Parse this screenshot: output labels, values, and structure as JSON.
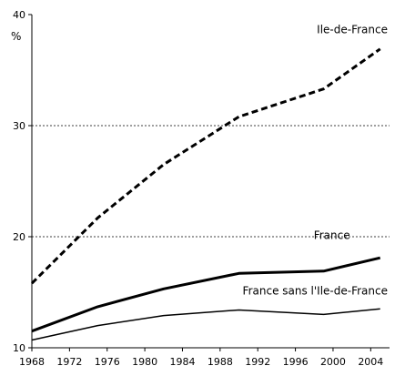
{
  "chart_data": {
    "type": "line",
    "title": "",
    "xlabel": "",
    "ylabel": "%",
    "xlim": [
      1968,
      2006
    ],
    "ylim": [
      10,
      40
    ],
    "x_ticks": [
      1968,
      1972,
      1976,
      1980,
      1984,
      1988,
      1992,
      1996,
      2000,
      2004
    ],
    "y_ticks": [
      10,
      20,
      30,
      40
    ],
    "grid": "horizontal dashed at 20, 30",
    "legend": "none (series labels placed next to lines)",
    "series": [
      {
        "name": "Ile-de-France",
        "style": "dashed",
        "width": 3,
        "color": "#000000",
        "x": [
          1968,
          1975,
          1982,
          1990,
          1999,
          2005
        ],
        "y": [
          15.8,
          21.7,
          26.5,
          30.8,
          33.3,
          36.9
        ]
      },
      {
        "name": "France",
        "style": "solid",
        "width": 3,
        "color": "#000000",
        "x": [
          1968,
          1975,
          1982,
          1990,
          1999,
          2005
        ],
        "y": [
          11.5,
          13.7,
          15.3,
          16.7,
          16.9,
          18.1
        ]
      },
      {
        "name": "France sans l'Ile-de-France",
        "style": "solid",
        "width": 1.5,
        "color": "#000000",
        "x": [
          1968,
          1975,
          1982,
          1990,
          1999,
          2005
        ],
        "y": [
          10.7,
          12.0,
          12.9,
          13.4,
          13.0,
          13.5
        ]
      }
    ]
  }
}
